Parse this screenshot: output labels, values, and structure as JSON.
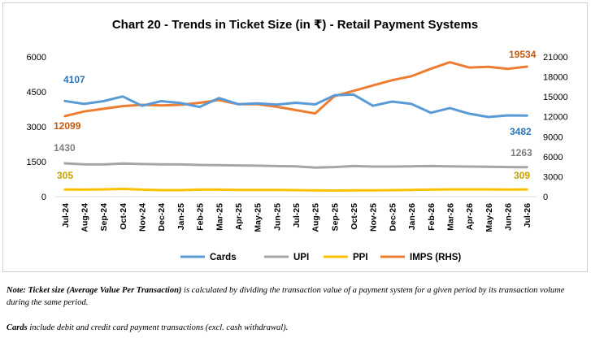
{
  "chart_data": {
    "type": "line",
    "title": "Chart 20 - Trends in Ticket Size (in ₹) - Retail Payment Systems",
    "categories": [
      "Jul-24",
      "Aug-24",
      "Sep-24",
      "Oct-24",
      "Nov-24",
      "Dec-24",
      "Jan-25",
      "Feb-25",
      "Mar-25",
      "Apr-25",
      "May-25",
      "Jun-25",
      "Jul-25",
      "Aug-25",
      "Sep-25",
      "Oct-25",
      "Nov-25",
      "Dec-25",
      "Jan-26",
      "Feb-26",
      "Mar-26",
      "Apr-26",
      "May-26",
      "Jun-26",
      "Jul-26"
    ],
    "y_left": {
      "ticks": [
        0,
        1500,
        3000,
        4500,
        6000
      ],
      "ylim": [
        0,
        6000
      ]
    },
    "y_right": {
      "ticks": [
        0,
        3000,
        6000,
        9000,
        12000,
        15000,
        18000,
        21000
      ],
      "ylim": [
        0,
        21000
      ]
    },
    "series": [
      {
        "name": "Cards",
        "axis": "left",
        "color": "#5B9BD5",
        "values": [
          4107,
          3980,
          4100,
          4300,
          3900,
          4100,
          4020,
          3850,
          4230,
          3970,
          4000,
          3950,
          4030,
          3960,
          4350,
          4380,
          3900,
          4080,
          3980,
          3600,
          3800,
          3560,
          3420,
          3490,
          3482
        ]
      },
      {
        "name": "UPI",
        "axis": "left",
        "color": "#A5A5A5",
        "values": [
          1430,
          1390,
          1380,
          1420,
          1400,
          1390,
          1380,
          1360,
          1350,
          1340,
          1330,
          1310,
          1300,
          1250,
          1270,
          1310,
          1290,
          1290,
          1300,
          1310,
          1300,
          1290,
          1280,
          1270,
          1263
        ]
      },
      {
        "name": "PPI",
        "axis": "left",
        "color": "#FFC000",
        "values": [
          305,
          300,
          310,
          330,
          300,
          280,
          280,
          300,
          300,
          290,
          290,
          290,
          280,
          270,
          260,
          270,
          270,
          280,
          290,
          300,
          310,
          310,
          310,
          300,
          309
        ]
      },
      {
        "name": "IMPS (RHS)",
        "axis": "right",
        "color": "#ED7D31",
        "values": [
          12099,
          12800,
          13200,
          13600,
          13800,
          13700,
          13800,
          14100,
          14500,
          13900,
          13900,
          13500,
          13000,
          12500,
          15100,
          15900,
          16700,
          17500,
          18100,
          19200,
          20200,
          19400,
          19500,
          19200,
          19534
        ]
      }
    ],
    "data_labels": {
      "cards_first": "4107",
      "cards_last": "3482",
      "upi_first": "1430",
      "upi_last": "1263",
      "ppi_first": "305",
      "ppi_last": "309",
      "imps_first": "12099",
      "imps_last": "19534"
    },
    "legend_position": "bottom",
    "grid": false
  },
  "notes": {
    "note1_lead": "Note: Ticket size (Average Value Per Transaction)",
    "note1_rest": " is calculated by dividing the transaction value of a payment system for a given period by its transaction volume during the same period.",
    "note2_lead": "Cards",
    "note2_rest": " include debit and credit card payment transactions (excl. cash withdrawal)."
  }
}
